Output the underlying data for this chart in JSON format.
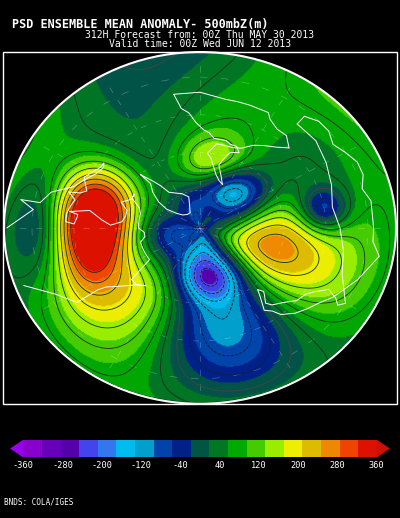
{
  "title_line1": "PSD ENSEMBLE MEAN ANOMALY- 500mbZ(m)",
  "title_line2": "312H Forecast from: 00Z Thu MAY 30 2013",
  "title_line3": "Valid time: 00Z Wed JUN 12 2013",
  "credit": "BNDS: COLA/IGES",
  "colorbar_labels": [
    "-360",
    "-280",
    "-200",
    "-120",
    "-40",
    "40",
    "120",
    "200",
    "280",
    "360"
  ],
  "cb_colors": [
    "#8800CC",
    "#6600BB",
    "#5500AA",
    "#4444EE",
    "#3377EE",
    "#00BBEE",
    "#009FCC",
    "#0044AA",
    "#002288",
    "#005544",
    "#007722",
    "#00AA00",
    "#44CC00",
    "#99EE00",
    "#EEEE00",
    "#DDBB00",
    "#EE8800",
    "#EE4400",
    "#DD1100"
  ],
  "background_color": "#000000",
  "fig_width": 4.0,
  "fig_height": 5.18
}
